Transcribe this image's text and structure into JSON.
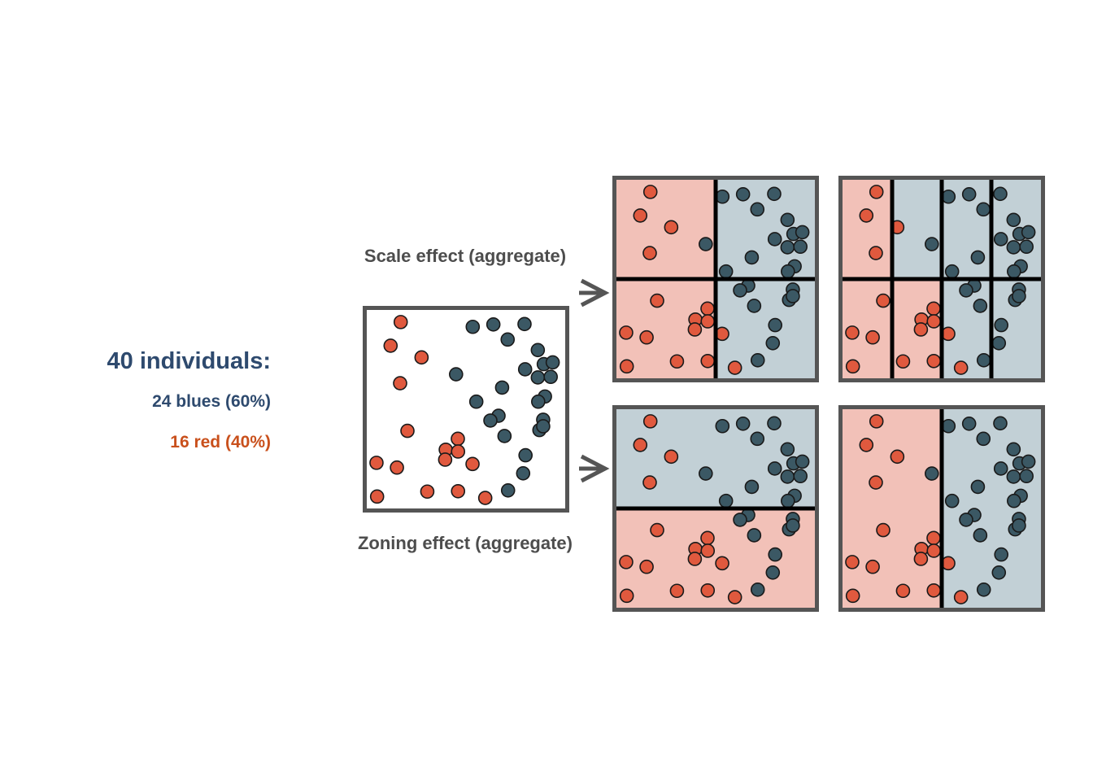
{
  "legend": {
    "title": "40 individuals:",
    "blues": "24 blues (60%)",
    "reds": "16 red (40%)"
  },
  "captions": {
    "scale": "Scale effect (aggregate)",
    "zoning": "Zoning effect (aggregate)"
  },
  "colors": {
    "red_dot": "#e0593e",
    "blue_dot": "#3b5864",
    "red_zone": "#f2c1b8",
    "blue_zone": "#c2d0d6",
    "frame": "#555555",
    "divider": "#000000",
    "dot_outline": "#1a1a1a"
  },
  "icons": {
    "arrow": "arrow-right-icon"
  },
  "chart_data": {
    "type": "scatter",
    "xlim": [
      0,
      100
    ],
    "ylim": [
      0,
      100
    ],
    "red": [
      [
        17.1,
        6.1
      ],
      [
        12.0,
        18.0
      ],
      [
        27.6,
        23.9
      ],
      [
        16.8,
        36.9
      ],
      [
        20.5,
        60.9
      ],
      [
        45.9,
        64.9
      ],
      [
        39.8,
        70.4
      ],
      [
        46.0,
        71.3
      ],
      [
        39.5,
        75.4
      ],
      [
        53.3,
        77.6
      ],
      [
        4.9,
        77.0
      ],
      [
        15.2,
        79.4
      ],
      [
        5.2,
        94.0
      ],
      [
        30.5,
        91.5
      ],
      [
        46.0,
        91.3
      ],
      [
        59.7,
        94.7
      ]
    ],
    "blue": [
      [
        53.4,
        8.5
      ],
      [
        63.8,
        7.3
      ],
      [
        79.5,
        7.1
      ],
      [
        71.0,
        14.9
      ],
      [
        86.2,
        20.2
      ],
      [
        89.2,
        27.3
      ],
      [
        93.7,
        26.4
      ],
      [
        79.8,
        29.9
      ],
      [
        86.2,
        34.0
      ],
      [
        92.7,
        33.7
      ],
      [
        45.0,
        32.4
      ],
      [
        68.2,
        39.1
      ],
      [
        89.8,
        43.6
      ],
      [
        86.4,
        46.2
      ],
      [
        55.2,
        46.2
      ],
      [
        66.4,
        53.3
      ],
      [
        62.3,
        55.7
      ],
      [
        88.9,
        55.3
      ],
      [
        87.0,
        60.5
      ],
      [
        88.9,
        58.6
      ],
      [
        69.4,
        63.5
      ],
      [
        80.0,
        73.2
      ],
      [
        78.8,
        82.3
      ],
      [
        71.2,
        90.9
      ]
    ],
    "panels": [
      {
        "name": "scale-2x2",
        "x_cuts": [
          50
        ],
        "y_cuts": [
          50
        ],
        "zones": [
          [
            "red",
            "blue"
          ],
          [
            "red",
            "blue"
          ]
        ]
      },
      {
        "name": "scale-4x2",
        "x_cuts": [
          25,
          50,
          75
        ],
        "y_cuts": [
          50
        ],
        "zones": [
          [
            "red",
            "blue",
            "blue",
            "blue"
          ],
          [
            "red",
            "red",
            "blue",
            "blue"
          ]
        ]
      },
      {
        "name": "zoning-horizontal",
        "x_cuts": [],
        "y_cuts": [
          50
        ],
        "zones": [
          [
            "blue"
          ],
          [
            "red"
          ]
        ]
      },
      {
        "name": "zoning-vertical",
        "x_cuts": [
          50
        ],
        "y_cuts": [],
        "zones": [
          [
            "red",
            "blue"
          ]
        ]
      }
    ]
  }
}
